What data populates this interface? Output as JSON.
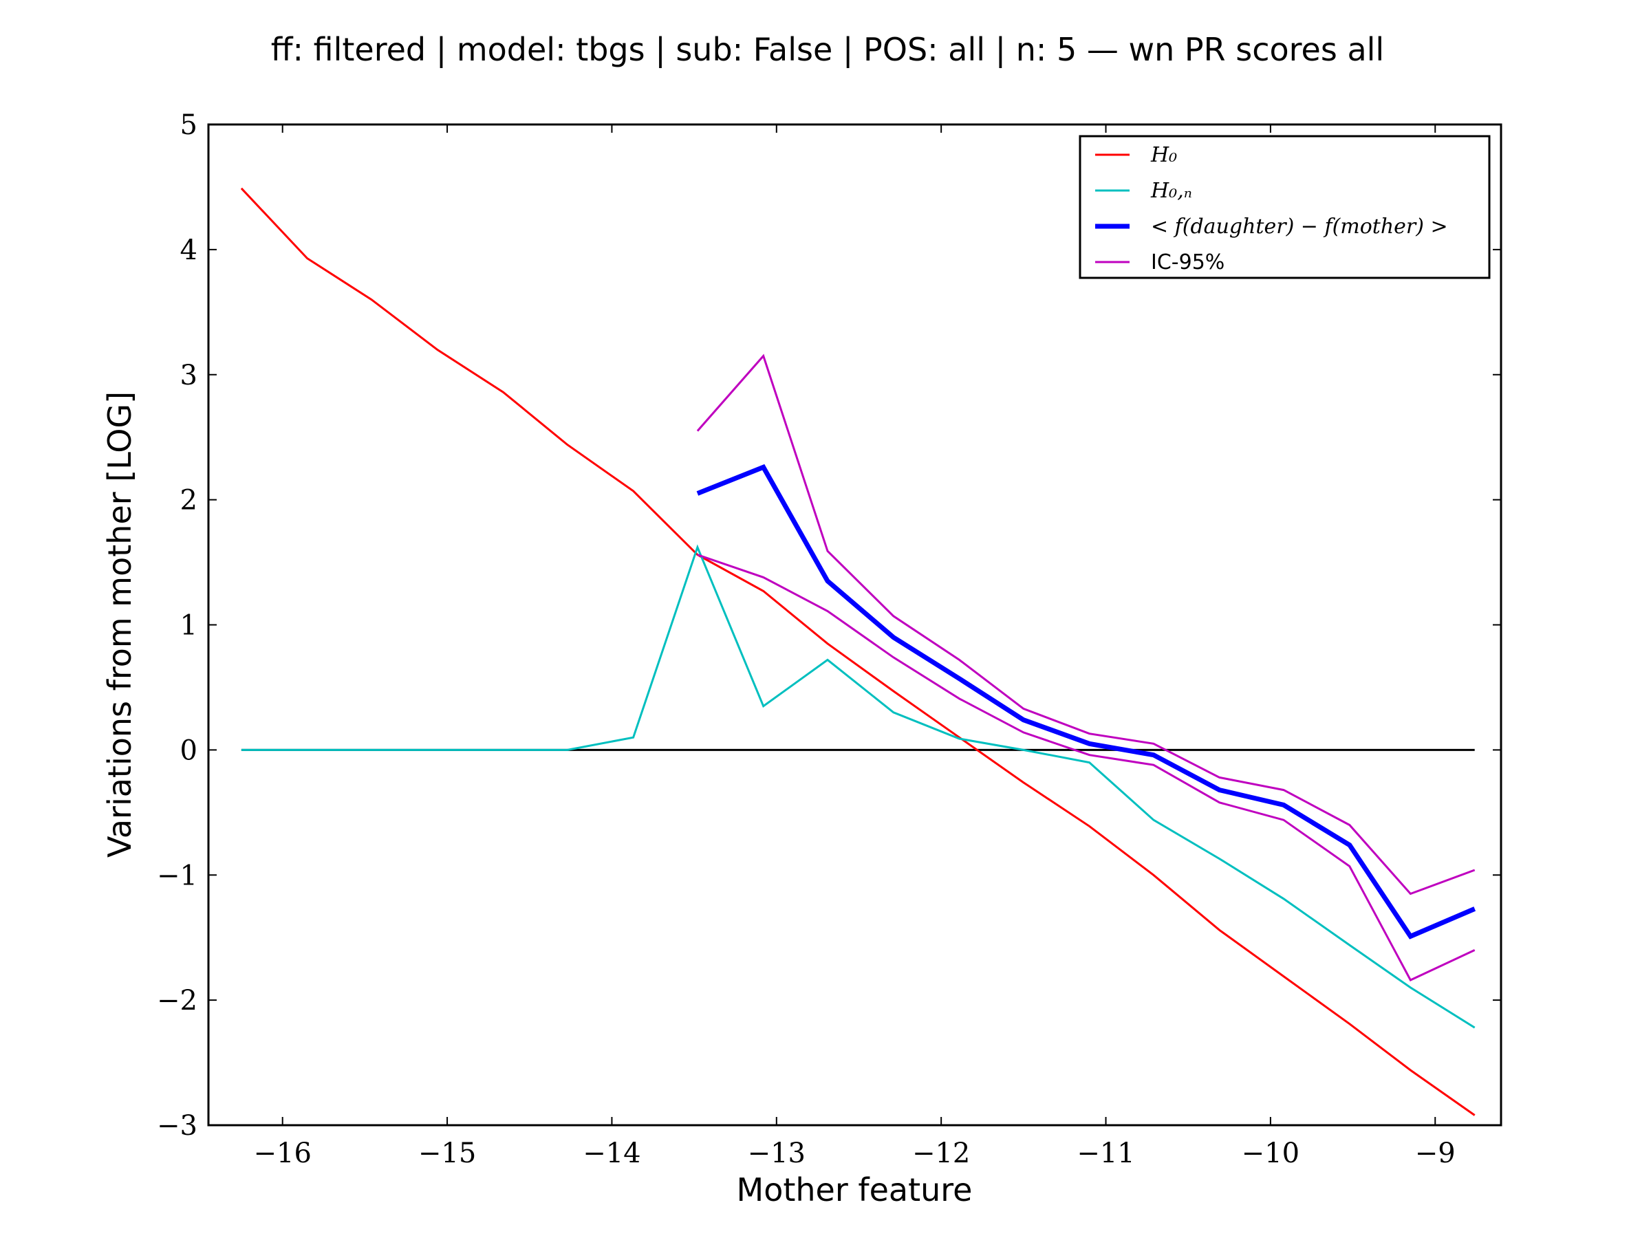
{
  "chart_data": {
    "type": "line",
    "title": "ff: filtered | model: tbgs | sub: False | POS: all | n: 5 — wn PR scores all",
    "xlabel": "Mother feature",
    "ylabel": "Variations from mother [LOG]",
    "xlim": [
      -16.45,
      -8.6
    ],
    "ylim": [
      -3,
      5
    ],
    "xticks": [
      -16,
      -15,
      -14,
      -13,
      -12,
      -11,
      -10,
      -9
    ],
    "xtick_labels": [
      "−16",
      "−15",
      "−14",
      "−13",
      "−12",
      "−11",
      "−10",
      "−9"
    ],
    "yticks": [
      -3,
      -2,
      -1,
      0,
      1,
      2,
      3,
      4,
      5
    ],
    "ytick_labels": [
      "−3",
      "−2",
      "−1",
      "0",
      "1",
      "2",
      "3",
      "4",
      "5"
    ],
    "grid": false,
    "legend_position": "top-right",
    "reference_line": {
      "y": 0,
      "x": [
        -16.25,
        -8.76
      ],
      "color": "#000000"
    },
    "series": [
      {
        "name": "H₀",
        "color": "#ff0000",
        "width": "thin",
        "x": [
          -16.25,
          -15.85,
          -15.46,
          -15.06,
          -14.66,
          -14.27,
          -13.87,
          -13.48,
          -13.08,
          -12.69,
          -12.29,
          -11.89,
          -11.5,
          -11.1,
          -10.71,
          -10.31,
          -9.92,
          -9.52,
          -9.15,
          -8.76
        ],
        "y": [
          4.49,
          3.93,
          3.6,
          3.2,
          2.86,
          2.44,
          2.07,
          1.56,
          1.27,
          0.85,
          0.47,
          0.1,
          -0.26,
          -0.61,
          -1.0,
          -1.44,
          -1.81,
          -2.19,
          -2.56,
          -2.92
        ]
      },
      {
        "name": "H₀,ₙ",
        "color": "#00bfbf",
        "width": "thin",
        "x": [
          -16.25,
          -15.85,
          -15.46,
          -15.06,
          -14.66,
          -14.27,
          -13.87,
          -13.48,
          -13.08,
          -12.69,
          -12.29,
          -11.89,
          -11.5,
          -11.1,
          -10.71,
          -10.31,
          -9.92,
          -9.52,
          -9.15,
          -8.76
        ],
        "y": [
          0,
          0,
          0,
          0,
          0,
          0,
          0.1,
          1.62,
          0.35,
          0.72,
          0.3,
          0.09,
          0.0,
          -0.1,
          -0.56,
          -0.87,
          -1.19,
          -1.56,
          -1.9,
          -2.22
        ]
      },
      {
        "name": "< f(daughter) − f(mother) >",
        "color": "#0000ff",
        "width": "thick",
        "x": [
          -13.48,
          -13.08,
          -12.69,
          -12.29,
          -11.89,
          -11.5,
          -11.1,
          -10.71,
          -10.31,
          -9.92,
          -9.52,
          -9.15,
          -8.76
        ],
        "y": [
          2.05,
          2.26,
          1.35,
          0.9,
          0.57,
          0.24,
          0.05,
          -0.04,
          -0.32,
          -0.44,
          -0.76,
          -1.49,
          -1.27
        ]
      },
      {
        "name": "IC-95%",
        "color": "#bf00bf",
        "width": "thin",
        "x": [
          -13.48,
          -13.08,
          -12.69,
          -12.29,
          -11.89,
          -11.5,
          -11.1,
          -10.71,
          -10.31,
          -9.92,
          -9.52,
          -9.15,
          -8.76
        ],
        "y": [
          2.55,
          3.15,
          1.59,
          1.07,
          0.72,
          0.33,
          0.13,
          0.05,
          -0.22,
          -0.32,
          -0.6,
          -1.15,
          -0.96
        ]
      },
      {
        "name": "",
        "color": "#bf00bf",
        "width": "thin",
        "x": [
          -13.48,
          -13.08,
          -12.69,
          -12.29,
          -11.89,
          -11.5,
          -11.1,
          -10.71,
          -10.31,
          -9.92,
          -9.52,
          -9.15,
          -8.76
        ],
        "y": [
          1.56,
          1.38,
          1.11,
          0.74,
          0.41,
          0.14,
          -0.04,
          -0.12,
          -0.42,
          -0.56,
          -0.93,
          -1.84,
          -1.6
        ]
      }
    ],
    "legend": [
      {
        "label": "H₀",
        "color": "#ff0000",
        "width": "thin",
        "style": "math"
      },
      {
        "label": "H₀,ₙ",
        "color": "#00bfbf",
        "width": "thin",
        "style": "math"
      },
      {
        "label": "< f(daughter) − f(mother) >",
        "color": "#0000ff",
        "width": "thick",
        "style": "math"
      },
      {
        "label": "IC-95%",
        "color": "#bf00bf",
        "width": "thin",
        "style": "plain"
      }
    ]
  }
}
